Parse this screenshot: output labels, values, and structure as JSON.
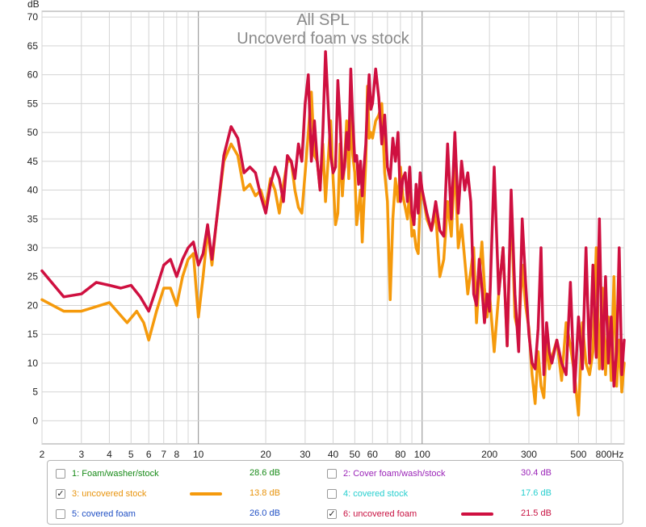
{
  "chart_data": {
    "type": "line",
    "title": "All SPL",
    "subtitle": "Uncoverd foam vs stock",
    "ylabel": "dB",
    "xlabel": "",
    "xscale": "log",
    "xlim": [
      2,
      800
    ],
    "ylim": [
      -4,
      71
    ],
    "x_ticks": [
      {
        "v": 2,
        "label": "2"
      },
      {
        "v": 3,
        "label": "3"
      },
      {
        "v": 4,
        "label": "4"
      },
      {
        "v": 5,
        "label": "5"
      },
      {
        "v": 6,
        "label": "6"
      },
      {
        "v": 7,
        "label": "7"
      },
      {
        "v": 8,
        "label": "8"
      },
      {
        "v": 10,
        "label": "10"
      },
      {
        "v": 20,
        "label": "20"
      },
      {
        "v": 30,
        "label": "30"
      },
      {
        "v": 40,
        "label": "40"
      },
      {
        "v": 50,
        "label": "50"
      },
      {
        "v": 60,
        "label": "60"
      },
      {
        "v": 80,
        "label": "80"
      },
      {
        "v": 100,
        "label": "100"
      },
      {
        "v": 200,
        "label": "200"
      },
      {
        "v": 300,
        "label": "300"
      },
      {
        "v": 500,
        "label": "500"
      },
      {
        "v": 800,
        "label": "800Hz"
      }
    ],
    "y_ticks": [
      0,
      5,
      10,
      15,
      20,
      25,
      30,
      35,
      40,
      45,
      50,
      55,
      60,
      65,
      70
    ],
    "grid": true,
    "series": [
      {
        "name": "3: uncovered stock",
        "color": "#f59a0c",
        "points": [
          [
            2,
            21
          ],
          [
            2.5,
            19
          ],
          [
            3,
            19
          ],
          [
            4,
            20.5
          ],
          [
            4.8,
            17
          ],
          [
            5.3,
            19
          ],
          [
            5.7,
            17
          ],
          [
            6,
            14
          ],
          [
            6.5,
            19
          ],
          [
            7,
            23
          ],
          [
            7.5,
            23
          ],
          [
            8,
            20
          ],
          [
            8.5,
            25
          ],
          [
            9,
            28
          ],
          [
            9.5,
            29
          ],
          [
            10,
            18
          ],
          [
            10.5,
            25
          ],
          [
            11,
            33
          ],
          [
            11.5,
            27
          ],
          [
            12,
            34
          ],
          [
            13,
            45
          ],
          [
            14,
            48
          ],
          [
            15,
            46
          ],
          [
            16,
            40
          ],
          [
            17,
            41
          ],
          [
            18,
            39
          ],
          [
            19,
            40
          ],
          [
            20,
            37
          ],
          [
            21,
            42
          ],
          [
            22,
            40
          ],
          [
            23,
            36
          ],
          [
            24,
            41
          ],
          [
            25,
            45
          ],
          [
            26,
            45
          ],
          [
            27,
            40
          ],
          [
            28,
            37
          ],
          [
            29,
            36
          ],
          [
            30,
            43
          ],
          [
            31,
            50
          ],
          [
            32,
            57
          ],
          [
            33,
            46
          ],
          [
            34,
            45
          ],
          [
            35,
            40
          ],
          [
            36,
            48
          ],
          [
            37,
            38
          ],
          [
            38,
            45
          ],
          [
            39,
            52
          ],
          [
            40,
            42
          ],
          [
            41,
            34
          ],
          [
            42,
            36
          ],
          [
            43,
            48
          ],
          [
            44,
            39
          ],
          [
            45,
            45
          ],
          [
            46,
            52
          ],
          [
            47,
            42
          ],
          [
            48,
            54
          ],
          [
            49,
            46
          ],
          [
            50,
            43
          ],
          [
            51,
            34
          ],
          [
            52,
            37
          ],
          [
            53,
            40
          ],
          [
            54,
            31
          ],
          [
            55,
            38
          ],
          [
            56,
            45
          ],
          [
            57,
            58
          ],
          [
            58,
            49
          ],
          [
            59,
            50
          ],
          [
            60,
            49
          ],
          [
            62,
            52
          ],
          [
            64,
            53
          ],
          [
            66,
            55
          ],
          [
            68,
            43
          ],
          [
            70,
            38
          ],
          [
            72,
            21
          ],
          [
            74,
            35
          ],
          [
            76,
            42
          ],
          [
            78,
            38
          ],
          [
            80,
            44
          ],
          [
            82,
            39
          ],
          [
            84,
            37
          ],
          [
            86,
            35
          ],
          [
            88,
            40
          ],
          [
            90,
            32
          ],
          [
            92,
            33
          ],
          [
            94,
            30
          ],
          [
            96,
            29
          ],
          [
            98,
            38
          ],
          [
            100,
            40
          ],
          [
            105,
            35
          ],
          [
            110,
            33
          ],
          [
            115,
            36
          ],
          [
            120,
            25
          ],
          [
            125,
            28
          ],
          [
            130,
            38
          ],
          [
            135,
            32
          ],
          [
            140,
            45
          ],
          [
            145,
            30
          ],
          [
            150,
            34
          ],
          [
            155,
            28
          ],
          [
            160,
            22
          ],
          [
            165,
            26
          ],
          [
            170,
            30
          ],
          [
            175,
            17
          ],
          [
            180,
            25
          ],
          [
            185,
            31
          ],
          [
            190,
            23
          ],
          [
            195,
            18
          ],
          [
            200,
            22
          ],
          [
            210,
            12
          ],
          [
            220,
            22
          ],
          [
            230,
            30
          ],
          [
            240,
            13
          ],
          [
            250,
            38
          ],
          [
            260,
            18
          ],
          [
            270,
            15
          ],
          [
            280,
            27
          ],
          [
            290,
            20
          ],
          [
            300,
            16
          ],
          [
            310,
            8
          ],
          [
            320,
            3
          ],
          [
            330,
            12
          ],
          [
            340,
            6
          ],
          [
            350,
            4
          ],
          [
            360,
            14
          ],
          [
            370,
            9
          ],
          [
            380,
            11
          ],
          [
            400,
            14
          ],
          [
            420,
            7
          ],
          [
            440,
            17
          ],
          [
            460,
            13
          ],
          [
            480,
            8
          ],
          [
            500,
            1
          ],
          [
            520,
            17
          ],
          [
            540,
            10
          ],
          [
            560,
            8
          ],
          [
            580,
            12
          ],
          [
            600,
            30
          ],
          [
            620,
            9
          ],
          [
            640,
            23
          ],
          [
            660,
            8
          ],
          [
            680,
            18
          ],
          [
            700,
            7
          ],
          [
            720,
            25
          ],
          [
            740,
            6
          ],
          [
            760,
            14
          ],
          [
            780,
            5
          ],
          [
            800,
            10
          ]
        ]
      },
      {
        "name": "6: uncovered foam",
        "color": "#cf1040",
        "points": [
          [
            2,
            26
          ],
          [
            2.5,
            21.5
          ],
          [
            3,
            22
          ],
          [
            3.5,
            24
          ],
          [
            4,
            23.5
          ],
          [
            4.5,
            23
          ],
          [
            5,
            23.5
          ],
          [
            5.5,
            21.5
          ],
          [
            6,
            19
          ],
          [
            6.5,
            23
          ],
          [
            7,
            27
          ],
          [
            7.5,
            28
          ],
          [
            8,
            25
          ],
          [
            8.5,
            28
          ],
          [
            9,
            30
          ],
          [
            9.5,
            31
          ],
          [
            10,
            27
          ],
          [
            10.5,
            29
          ],
          [
            11,
            34
          ],
          [
            11.5,
            28
          ],
          [
            12,
            34
          ],
          [
            13,
            46
          ],
          [
            14,
            51
          ],
          [
            15,
            49
          ],
          [
            16,
            43
          ],
          [
            17,
            44
          ],
          [
            18,
            43
          ],
          [
            19,
            39
          ],
          [
            20,
            36
          ],
          [
            21,
            41
          ],
          [
            22,
            44
          ],
          [
            23,
            42
          ],
          [
            24,
            38
          ],
          [
            25,
            46
          ],
          [
            26,
            45
          ],
          [
            27,
            42
          ],
          [
            28,
            48
          ],
          [
            29,
            45
          ],
          [
            30,
            55
          ],
          [
            31,
            60
          ],
          [
            32,
            45
          ],
          [
            33,
            52
          ],
          [
            34,
            45
          ],
          [
            35,
            40
          ],
          [
            36,
            50
          ],
          [
            37,
            64
          ],
          [
            38,
            55
          ],
          [
            39,
            46
          ],
          [
            40,
            43
          ],
          [
            41,
            44
          ],
          [
            42,
            59
          ],
          [
            43,
            52
          ],
          [
            44,
            42
          ],
          [
            45,
            44
          ],
          [
            46,
            50
          ],
          [
            47,
            47
          ],
          [
            48,
            61
          ],
          [
            49,
            52
          ],
          [
            50,
            45
          ],
          [
            51,
            46
          ],
          [
            52,
            41
          ],
          [
            53,
            45
          ],
          [
            54,
            39
          ],
          [
            55,
            44
          ],
          [
            56,
            48
          ],
          [
            57,
            55
          ],
          [
            58,
            60
          ],
          [
            59,
            54
          ],
          [
            60,
            55
          ],
          [
            62,
            61
          ],
          [
            64,
            56
          ],
          [
            66,
            48
          ],
          [
            68,
            53
          ],
          [
            70,
            44
          ],
          [
            72,
            42
          ],
          [
            74,
            49
          ],
          [
            76,
            45
          ],
          [
            78,
            50
          ],
          [
            80,
            38
          ],
          [
            82,
            42
          ],
          [
            84,
            43
          ],
          [
            86,
            38
          ],
          [
            88,
            44
          ],
          [
            90,
            36
          ],
          [
            92,
            34
          ],
          [
            94,
            41
          ],
          [
            96,
            36
          ],
          [
            98,
            43
          ],
          [
            100,
            40
          ],
          [
            105,
            36
          ],
          [
            110,
            33
          ],
          [
            115,
            38
          ],
          [
            120,
            33
          ],
          [
            125,
            32
          ],
          [
            130,
            48
          ],
          [
            135,
            35
          ],
          [
            140,
            50
          ],
          [
            145,
            36
          ],
          [
            150,
            45
          ],
          [
            155,
            40
          ],
          [
            160,
            43
          ],
          [
            165,
            38
          ],
          [
            170,
            22
          ],
          [
            175,
            20
          ],
          [
            180,
            28
          ],
          [
            185,
            23
          ],
          [
            190,
            17
          ],
          [
            195,
            22
          ],
          [
            200,
            19
          ],
          [
            210,
            44
          ],
          [
            220,
            22
          ],
          [
            230,
            30
          ],
          [
            240,
            13
          ],
          [
            250,
            40
          ],
          [
            260,
            22
          ],
          [
            270,
            12
          ],
          [
            280,
            35
          ],
          [
            290,
            24
          ],
          [
            300,
            15
          ],
          [
            310,
            10
          ],
          [
            320,
            9
          ],
          [
            330,
            16
          ],
          [
            340,
            30
          ],
          [
            350,
            8
          ],
          [
            360,
            17
          ],
          [
            370,
            12
          ],
          [
            380,
            10
          ],
          [
            400,
            14
          ],
          [
            420,
            10
          ],
          [
            440,
            8
          ],
          [
            460,
            24
          ],
          [
            480,
            5
          ],
          [
            500,
            18
          ],
          [
            520,
            9
          ],
          [
            540,
            30
          ],
          [
            560,
            10
          ],
          [
            580,
            27
          ],
          [
            600,
            11
          ],
          [
            620,
            35
          ],
          [
            640,
            9
          ],
          [
            660,
            25
          ],
          [
            680,
            10
          ],
          [
            700,
            18
          ],
          [
            720,
            6
          ],
          [
            740,
            12
          ],
          [
            760,
            30
          ],
          [
            780,
            8
          ],
          [
            800,
            14
          ]
        ]
      }
    ]
  },
  "legend": {
    "items": [
      {
        "label": "1: Foam/washer/stock",
        "value": "28.6 dB",
        "checked": false,
        "label_color": "#178a17",
        "value_color": "#178a17",
        "checkmark": ""
      },
      {
        "label": "2: Cover foam/wash/stock",
        "value": "30.4 dB",
        "checked": false,
        "label_color": "#9b25b8",
        "value_color": "#9b25b8",
        "checkmark": ""
      },
      {
        "label": "3: uncovered stock",
        "value": "13.8 dB",
        "checked": true,
        "label_color": "#e8930b",
        "value_color": "#e8930b",
        "swatch_color": "#f59a0c",
        "checkmark": "✓"
      },
      {
        "label": "4: covered stock",
        "value": "17.6 dB",
        "checked": false,
        "label_color": "#27cfcf",
        "value_color": "#27cfcf",
        "checkmark": ""
      },
      {
        "label": "5: covered foam",
        "value": "26.0 dB",
        "checked": false,
        "label_color": "#1f4fc4",
        "value_color": "#1f4fc4",
        "checkmark": ""
      },
      {
        "label": "6: uncovered foam",
        "value": "21.5 dB",
        "checked": true,
        "label_color": "#c81040",
        "value_color": "#c81040",
        "swatch_color": "#cf1040",
        "checkmark": "✓"
      }
    ]
  }
}
